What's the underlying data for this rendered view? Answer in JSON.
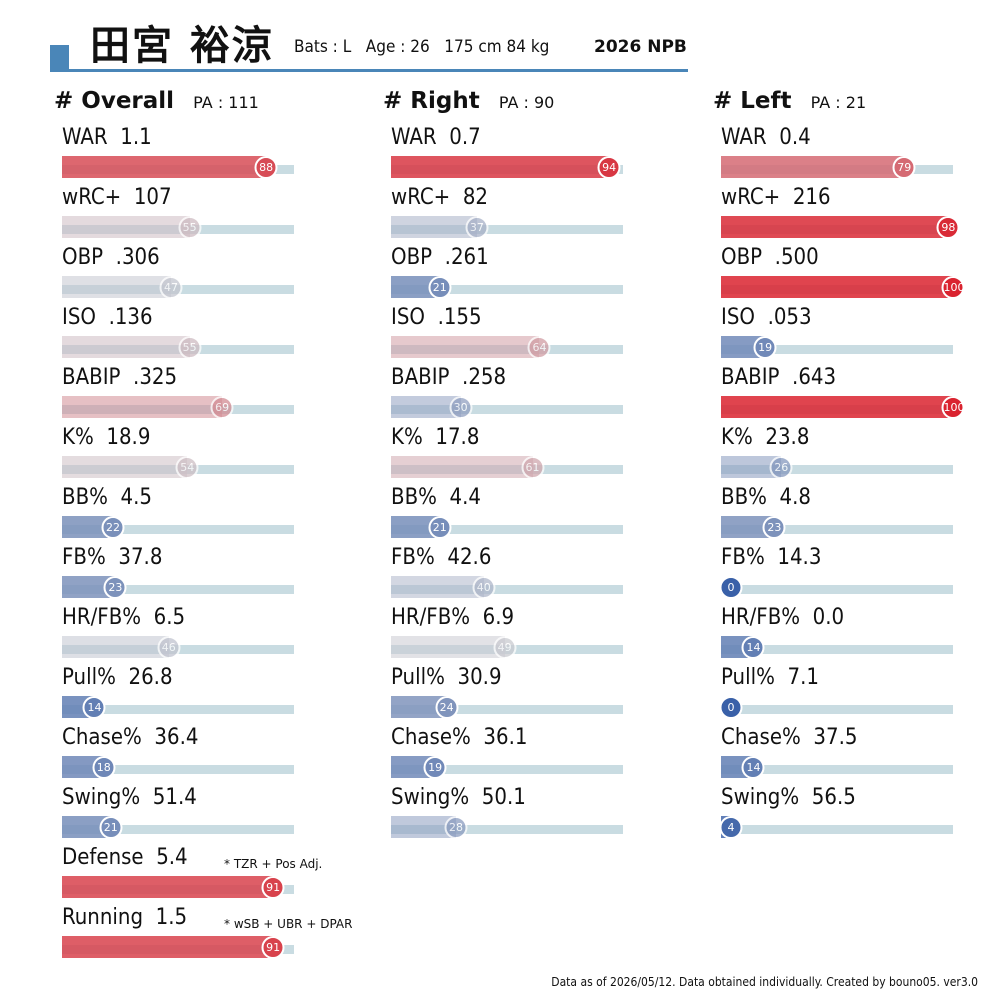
{
  "header": {
    "name": "田宮 裕涼",
    "bats": "Bats : L",
    "age": "Age : 26",
    "body": "175 cm 84 kg",
    "season": "2026 NPB",
    "accent_color": "#4a86b8"
  },
  "columns": [
    {
      "title": "# Overall",
      "pa": "PA : 111",
      "metrics": [
        {
          "name": "WAR",
          "value": "1.1",
          "pct": 88
        },
        {
          "name": "wRC+",
          "value": "107",
          "pct": 55
        },
        {
          "name": "OBP",
          "value": ".306",
          "pct": 47
        },
        {
          "name": "ISO",
          "value": ".136",
          "pct": 55
        },
        {
          "name": "BABIP",
          "value": ".325",
          "pct": 69
        },
        {
          "name": "K%",
          "value": "18.9",
          "pct": 54
        },
        {
          "name": "BB%",
          "value": "4.5",
          "pct": 22
        },
        {
          "name": "FB%",
          "value": "37.8",
          "pct": 23
        },
        {
          "name": "HR/FB%",
          "value": "6.5",
          "pct": 46
        },
        {
          "name": "Pull%",
          "value": "26.8",
          "pct": 14
        },
        {
          "name": "Chase%",
          "value": "36.4",
          "pct": 18
        },
        {
          "name": "Swing%",
          "value": "51.4",
          "pct": 21
        },
        {
          "name": "Defense",
          "value": "5.4",
          "pct": 91,
          "note": "* TZR + Pos Adj."
        },
        {
          "name": "Running",
          "value": "1.5",
          "pct": 91,
          "note": "* wSB + UBR + DPAR"
        }
      ]
    },
    {
      "title": "# Right",
      "pa": "PA : 90",
      "metrics": [
        {
          "name": "WAR",
          "value": "0.7",
          "pct": 94
        },
        {
          "name": "wRC+",
          "value": "82",
          "pct": 37
        },
        {
          "name": "OBP",
          "value": ".261",
          "pct": 21
        },
        {
          "name": "ISO",
          "value": ".155",
          "pct": 64
        },
        {
          "name": "BABIP",
          "value": ".258",
          "pct": 30
        },
        {
          "name": "K%",
          "value": "17.8",
          "pct": 61
        },
        {
          "name": "BB%",
          "value": "4.4",
          "pct": 21
        },
        {
          "name": "FB%",
          "value": "42.6",
          "pct": 40
        },
        {
          "name": "HR/FB%",
          "value": "6.9",
          "pct": 49
        },
        {
          "name": "Pull%",
          "value": "30.9",
          "pct": 24
        },
        {
          "name": "Chase%",
          "value": "36.1",
          "pct": 19
        },
        {
          "name": "Swing%",
          "value": "50.1",
          "pct": 28
        }
      ]
    },
    {
      "title": "# Left",
      "pa": "PA : 21",
      "metrics": [
        {
          "name": "WAR",
          "value": "0.4",
          "pct": 79
        },
        {
          "name": "wRC+",
          "value": "216",
          "pct": 98
        },
        {
          "name": "OBP",
          "value": ".500",
          "pct": 100
        },
        {
          "name": "ISO",
          "value": ".053",
          "pct": 19
        },
        {
          "name": "BABIP",
          "value": ".643",
          "pct": 100
        },
        {
          "name": "K%",
          "value": "23.8",
          "pct": 26
        },
        {
          "name": "BB%",
          "value": "4.8",
          "pct": 23
        },
        {
          "name": "FB%",
          "value": "14.3",
          "pct": 0
        },
        {
          "name": "HR/FB%",
          "value": "0.0",
          "pct": 14
        },
        {
          "name": "Pull%",
          "value": "7.1",
          "pct": 0
        },
        {
          "name": "Chase%",
          "value": "37.5",
          "pct": 14
        },
        {
          "name": "Swing%",
          "value": "56.5",
          "pct": 4
        }
      ]
    }
  ],
  "footer": "Data as of 2026/05/12. Data obtained individually. Created by bouno05.  ver3.0"
}
